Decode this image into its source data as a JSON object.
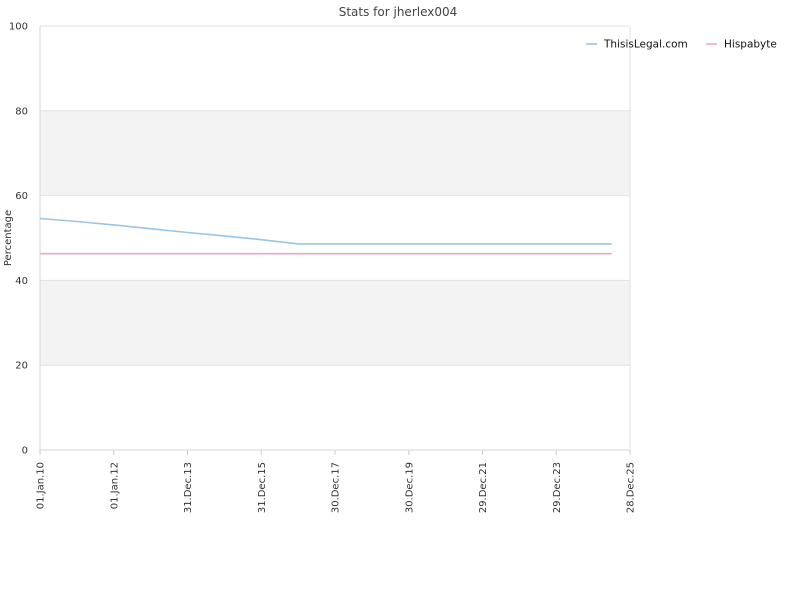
{
  "chart_data": {
    "type": "line",
    "title": "Stats for jherlex004",
    "ylabel": "Percentage",
    "xlabel": "",
    "ylim": [
      0,
      100
    ],
    "yticks": [
      0,
      20,
      40,
      60,
      80,
      100
    ],
    "xlim": [
      "2010-01-01",
      "2025-12-28"
    ],
    "xticks": [
      {
        "date": "2010-01-01",
        "label": "01.Jan.10"
      },
      {
        "date": "2012-01-01",
        "label": "01.Jan.12"
      },
      {
        "date": "2013-12-31",
        "label": "31.Dec.13"
      },
      {
        "date": "2015-12-31",
        "label": "31.Dec.15"
      },
      {
        "date": "2017-12-30",
        "label": "30.Dec.17"
      },
      {
        "date": "2019-12-30",
        "label": "30.Dec.19"
      },
      {
        "date": "2021-12-29",
        "label": "29.Dec.21"
      },
      {
        "date": "2023-12-29",
        "label": "29.Dec.23"
      },
      {
        "date": "2025-12-28",
        "label": "28.Dec.25"
      }
    ],
    "grid": true,
    "legend_position": "top-right",
    "series": [
      {
        "name": "ThisisLegal.com",
        "color": "#99c4ea",
        "points": [
          {
            "x": "2010-01-01",
            "y": 54.6
          },
          {
            "x": "2011-01-01",
            "y": 53.9
          },
          {
            "x": "2012-01-01",
            "y": 53.1
          },
          {
            "x": "2013-01-01",
            "y": 52.2
          },
          {
            "x": "2014-01-01",
            "y": 51.3
          },
          {
            "x": "2015-01-01",
            "y": 50.5
          },
          {
            "x": "2016-01-01",
            "y": 49.6
          },
          {
            "x": "2017-01-01",
            "y": 48.6
          },
          {
            "x": "2018-01-01",
            "y": 48.6
          },
          {
            "x": "2020-01-01",
            "y": 48.6
          },
          {
            "x": "2022-01-01",
            "y": 48.6
          },
          {
            "x": "2024-01-01",
            "y": 48.6
          },
          {
            "x": "2025-06-30",
            "y": 48.6
          }
        ]
      },
      {
        "name": "Hispabyte",
        "color": "#eaa9c9",
        "points": [
          {
            "x": "2010-01-01",
            "y": 46.3
          },
          {
            "x": "2025-06-30",
            "y": 46.3
          }
        ]
      }
    ]
  }
}
